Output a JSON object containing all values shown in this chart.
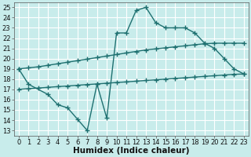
{
  "background_color": "#c8eceb",
  "grid_color": "#ffffff",
  "line_color": "#1e7070",
  "line_width": 1.0,
  "marker": "+",
  "marker_size": 4,
  "marker_edge_width": 1.0,
  "xlabel": "Humidex (Indice chaleur)",
  "xlabel_fontsize": 7.5,
  "tick_fontsize": 6,
  "xlim": [
    -0.5,
    23.5
  ],
  "ylim": [
    12.5,
    25.5
  ],
  "yticks": [
    13,
    14,
    15,
    16,
    17,
    18,
    19,
    20,
    21,
    22,
    23,
    24,
    25
  ],
  "xticks": [
    0,
    1,
    2,
    3,
    4,
    5,
    6,
    7,
    8,
    9,
    10,
    11,
    12,
    13,
    14,
    15,
    16,
    17,
    18,
    19,
    20,
    21,
    22,
    23
  ],
  "curve1_x": [
    0,
    1,
    3,
    4,
    5,
    6,
    7,
    8,
    9,
    10,
    11,
    12,
    13,
    14,
    15,
    16,
    17,
    18,
    19,
    20,
    21,
    22,
    23
  ],
  "curve1_y": [
    19.0,
    17.5,
    16.5,
    15.5,
    15.2,
    14.1,
    13.0,
    17.5,
    14.2,
    22.5,
    22.5,
    24.7,
    25.0,
    23.5,
    23.0,
    23.0,
    23.0,
    22.5,
    21.5,
    21.0,
    20.0,
    19.0,
    18.5
  ],
  "curve2_x": [
    0,
    1,
    2,
    3,
    4,
    5,
    6,
    7,
    8,
    9,
    10,
    11,
    12,
    13,
    14,
    15,
    16,
    17,
    18,
    19,
    20,
    21,
    22,
    23
  ],
  "curve2_y": [
    19.0,
    19.1,
    19.2,
    19.35,
    19.5,
    19.65,
    19.8,
    19.95,
    20.1,
    20.25,
    20.4,
    20.55,
    20.7,
    20.85,
    20.95,
    21.05,
    21.15,
    21.25,
    21.35,
    21.45,
    21.5,
    21.5,
    21.5,
    21.5
  ],
  "curve3_x": [
    0,
    1,
    2,
    3,
    4,
    5,
    6,
    7,
    8,
    9,
    10,
    11,
    12,
    13,
    14,
    15,
    16,
    17,
    18,
    19,
    20,
    21,
    22,
    23
  ],
  "curve3_y": [
    17.0,
    17.07,
    17.13,
    17.2,
    17.27,
    17.33,
    17.4,
    17.47,
    17.53,
    17.6,
    17.67,
    17.73,
    17.8,
    17.87,
    17.93,
    18.0,
    18.07,
    18.13,
    18.2,
    18.27,
    18.33,
    18.4,
    18.47,
    18.5
  ]
}
